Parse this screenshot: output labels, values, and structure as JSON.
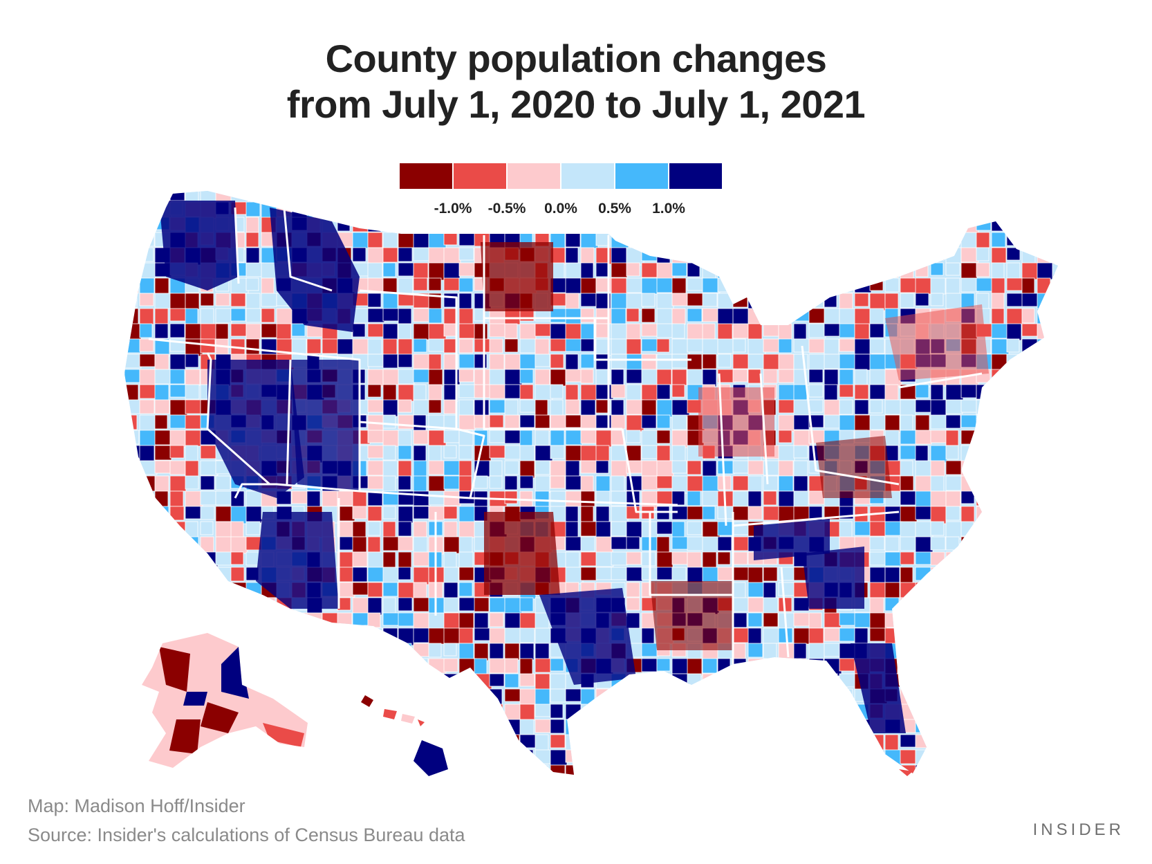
{
  "title": {
    "line1": "County population changes",
    "line2": "from July 1, 2020 to July 1, 2021"
  },
  "legend": {
    "colors": [
      "#8b0000",
      "#ea4b48",
      "#fdcacd",
      "#c4e6fa",
      "#45b8fb",
      "#00007f"
    ],
    "labels": [
      "-1.0%",
      "-0.5%",
      "0.0%",
      "0.5%",
      "1.0%"
    ]
  },
  "credits": {
    "map": "Map: Madison Hoff/Insider",
    "source": "Source: Insider's calculations of Census Bureau data"
  },
  "brand": "INSIDER"
}
